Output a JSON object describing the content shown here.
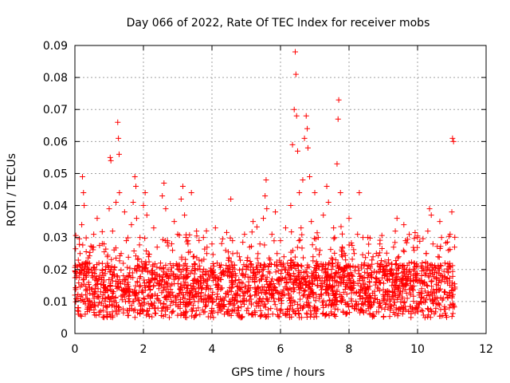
{
  "chart_data": {
    "type": "scatter",
    "title": "Day 066 of 2022, Rate Of TEC Index for receiver mobs",
    "xlabel": "GPS time / hours",
    "ylabel": "ROTI / TECUs",
    "xlim": [
      0,
      12
    ],
    "ylim": [
      0,
      0.09
    ],
    "xticks": [
      0,
      2,
      4,
      6,
      8,
      10,
      12
    ],
    "xtick_labels": [
      "0",
      "2",
      "4",
      "6",
      "8",
      "10",
      "12"
    ],
    "yticks": [
      0,
      0.01,
      0.02,
      0.03,
      0.04,
      0.05,
      0.06,
      0.07,
      0.08,
      0.09
    ],
    "ytick_labels": [
      "0",
      "0.01",
      "0.02",
      "0.03",
      "0.04",
      "0.05",
      "0.06",
      "0.07",
      "0.08",
      "0.09"
    ],
    "grid": true,
    "marker": "+",
    "colors": {
      "series": "#ff0000",
      "axis": "#000000",
      "grid": "#a0a0a0"
    },
    "series": [
      {
        "name": "ROTI",
        "points": [
          [
            0.0,
            0.012
          ],
          [
            0.05,
            0.018
          ],
          [
            0.1,
            0.008
          ],
          [
            0.15,
            0.025
          ],
          [
            0.2,
            0.034
          ],
          [
            0.22,
            0.049
          ],
          [
            0.25,
            0.044
          ],
          [
            0.27,
            0.04
          ],
          [
            0.3,
            0.021
          ],
          [
            0.35,
            0.011
          ],
          [
            0.4,
            0.016
          ],
          [
            0.45,
            0.009
          ],
          [
            0.5,
            0.027
          ],
          [
            0.55,
            0.031
          ],
          [
            0.6,
            0.013
          ],
          [
            0.65,
            0.036
          ],
          [
            0.7,
            0.022
          ],
          [
            0.75,
            0.007
          ],
          [
            0.8,
            0.019
          ],
          [
            0.85,
            0.028
          ],
          [
            0.9,
            0.014
          ],
          [
            0.95,
            0.024
          ],
          [
            1.0,
            0.039
          ],
          [
            1.03,
            0.055
          ],
          [
            1.05,
            0.054
          ],
          [
            1.1,
            0.032
          ],
          [
            1.15,
            0.018
          ],
          [
            1.2,
            0.041
          ],
          [
            1.25,
            0.066
          ],
          [
            1.27,
            0.061
          ],
          [
            1.29,
            0.056
          ],
          [
            1.3,
            0.044
          ],
          [
            1.35,
            0.025
          ],
          [
            1.4,
            0.012
          ],
          [
            1.45,
            0.038
          ],
          [
            1.5,
            0.029
          ],
          [
            1.55,
            0.016
          ],
          [
            1.6,
            0.01
          ],
          [
            1.65,
            0.034
          ],
          [
            1.7,
            0.041
          ],
          [
            1.75,
            0.049
          ],
          [
            1.78,
            0.046
          ],
          [
            1.8,
            0.036
          ],
          [
            1.85,
            0.021
          ],
          [
            1.9,
            0.03
          ],
          [
            1.95,
            0.013
          ],
          [
            2.0,
            0.04
          ],
          [
            2.05,
            0.044
          ],
          [
            2.1,
            0.037
          ],
          [
            2.15,
            0.024
          ],
          [
            2.2,
            0.011
          ],
          [
            2.25,
            0.019
          ],
          [
            2.3,
            0.033
          ],
          [
            2.35,
            0.008
          ],
          [
            2.4,
            0.027
          ],
          [
            2.45,
            0.015
          ],
          [
            2.5,
            0.022
          ],
          [
            2.55,
            0.043
          ],
          [
            2.6,
            0.047
          ],
          [
            2.65,
            0.039
          ],
          [
            2.7,
            0.029
          ],
          [
            2.75,
            0.012
          ],
          [
            2.8,
            0.018
          ],
          [
            2.85,
            0.026
          ],
          [
            2.9,
            0.035
          ],
          [
            2.95,
            0.009
          ],
          [
            3.0,
            0.031
          ],
          [
            3.05,
            0.021
          ],
          [
            3.1,
            0.042
          ],
          [
            3.15,
            0.046
          ],
          [
            3.2,
            0.037
          ],
          [
            3.25,
            0.015
          ],
          [
            3.3,
            0.028
          ],
          [
            3.35,
            0.011
          ],
          [
            3.4,
            0.044
          ],
          [
            3.45,
            0.024
          ],
          [
            3.5,
            0.017
          ],
          [
            3.55,
            0.032
          ],
          [
            3.6,
            0.008
          ],
          [
            3.65,
            0.02
          ],
          [
            3.7,
            0.014
          ],
          [
            3.75,
            0.03
          ],
          [
            3.8,
            0.012
          ],
          [
            3.85,
            0.025
          ],
          [
            3.9,
            0.01
          ],
          [
            3.95,
            0.018
          ],
          [
            4.0,
            0.028
          ],
          [
            4.05,
            0.007
          ],
          [
            4.1,
            0.033
          ],
          [
            4.15,
            0.022
          ],
          [
            4.2,
            0.015
          ],
          [
            4.25,
            0.011
          ],
          [
            4.3,
            0.019
          ],
          [
            4.35,
            0.009
          ],
          [
            4.4,
            0.026
          ],
          [
            4.45,
            0.013
          ],
          [
            4.5,
            0.021
          ],
          [
            4.55,
            0.042
          ],
          [
            4.6,
            0.029
          ],
          [
            4.65,
            0.012
          ],
          [
            4.7,
            0.018
          ],
          [
            4.75,
            0.008
          ],
          [
            4.8,
            0.024
          ],
          [
            4.85,
            0.016
          ],
          [
            4.9,
            0.01
          ],
          [
            4.95,
            0.031
          ],
          [
            5.0,
            0.02
          ],
          [
            5.05,
            0.014
          ],
          [
            5.1,
            0.027
          ],
          [
            5.15,
            0.009
          ],
          [
            5.2,
            0.035
          ],
          [
            5.25,
            0.017
          ],
          [
            5.3,
            0.012
          ],
          [
            5.35,
            0.022
          ],
          [
            5.4,
            0.028
          ],
          [
            5.45,
            0.01
          ],
          [
            5.5,
            0.036
          ],
          [
            5.55,
            0.043
          ],
          [
            5.58,
            0.048
          ],
          [
            5.6,
            0.039
          ],
          [
            5.65,
            0.021
          ],
          [
            5.7,
            0.015
          ],
          [
            5.75,
            0.031
          ],
          [
            5.8,
            0.011
          ],
          [
            5.85,
            0.038
          ],
          [
            5.9,
            0.025
          ],
          [
            5.95,
            0.017
          ],
          [
            6.0,
            0.029
          ],
          [
            6.05,
            0.013
          ],
          [
            6.1,
            0.024
          ],
          [
            6.15,
            0.033
          ],
          [
            6.2,
            0.019
          ],
          [
            6.25,
            0.012
          ],
          [
            6.3,
            0.04
          ],
          [
            6.35,
            0.059
          ],
          [
            6.4,
            0.07
          ],
          [
            6.43,
            0.088
          ],
          [
            6.45,
            0.081
          ],
          [
            6.47,
            0.068
          ],
          [
            6.5,
            0.057
          ],
          [
            6.55,
            0.044
          ],
          [
            6.6,
            0.033
          ],
          [
            6.62,
            0.021
          ],
          [
            6.65,
            0.048
          ],
          [
            6.7,
            0.061
          ],
          [
            6.75,
            0.068
          ],
          [
            6.78,
            0.064
          ],
          [
            6.8,
            0.058
          ],
          [
            6.85,
            0.049
          ],
          [
            6.9,
            0.035
          ],
          [
            6.95,
            0.024
          ],
          [
            7.0,
            0.044
          ],
          [
            7.05,
            0.018
          ],
          [
            7.1,
            0.03
          ],
          [
            7.15,
            0.026
          ],
          [
            7.2,
            0.012
          ],
          [
            7.25,
            0.037
          ],
          [
            7.3,
            0.02
          ],
          [
            7.35,
            0.046
          ],
          [
            7.4,
            0.041
          ],
          [
            7.45,
            0.015
          ],
          [
            7.5,
            0.022
          ],
          [
            7.55,
            0.033
          ],
          [
            7.6,
            0.011
          ],
          [
            7.65,
            0.053
          ],
          [
            7.68,
            0.067
          ],
          [
            7.7,
            0.073
          ],
          [
            7.75,
            0.044
          ],
          [
            7.8,
            0.027
          ],
          [
            7.85,
            0.016
          ],
          [
            7.9,
            0.023
          ],
          [
            7.95,
            0.009
          ],
          [
            8.0,
            0.036
          ],
          [
            8.05,
            0.019
          ],
          [
            8.1,
            0.014
          ],
          [
            8.15,
            0.025
          ],
          [
            8.2,
            0.01
          ],
          [
            8.25,
            0.031
          ],
          [
            8.3,
            0.044
          ],
          [
            8.35,
            0.018
          ],
          [
            8.4,
            0.007
          ],
          [
            8.45,
            0.022
          ],
          [
            8.5,
            0.013
          ],
          [
            8.55,
            0.03
          ],
          [
            8.6,
            0.016
          ],
          [
            8.65,
            0.009
          ],
          [
            8.7,
            0.024
          ],
          [
            8.75,
            0.011
          ],
          [
            8.8,
            0.019
          ],
          [
            8.85,
            0.014
          ],
          [
            8.9,
            0.028
          ],
          [
            8.95,
            0.008
          ],
          [
            9.0,
            0.02
          ],
          [
            9.05,
            0.012
          ],
          [
            9.1,
            0.017
          ],
          [
            9.15,
            0.023
          ],
          [
            9.2,
            0.009
          ],
          [
            9.25,
            0.015
          ],
          [
            9.3,
            0.027
          ],
          [
            9.35,
            0.032
          ],
          [
            9.4,
            0.036
          ],
          [
            9.45,
            0.024
          ],
          [
            9.5,
            0.013
          ],
          [
            9.55,
            0.019
          ],
          [
            9.6,
            0.034
          ],
          [
            9.65,
            0.029
          ],
          [
            9.7,
            0.011
          ],
          [
            9.75,
            0.022
          ],
          [
            9.8,
            0.015
          ],
          [
            9.85,
            0.008
          ],
          [
            9.9,
            0.026
          ],
          [
            9.95,
            0.018
          ],
          [
            10.0,
            0.03
          ],
          [
            10.05,
            0.012
          ],
          [
            10.1,
            0.021
          ],
          [
            10.15,
            0.007
          ],
          [
            10.2,
            0.016
          ],
          [
            10.25,
            0.025
          ],
          [
            10.3,
            0.032
          ],
          [
            10.35,
            0.039
          ],
          [
            10.4,
            0.037
          ],
          [
            10.45,
            0.028
          ],
          [
            10.5,
            0.019
          ],
          [
            10.55,
            0.013
          ],
          [
            10.6,
            0.024
          ],
          [
            10.65,
            0.035
          ],
          [
            10.7,
            0.03
          ],
          [
            10.75,
            0.011
          ],
          [
            10.8,
            0.022
          ],
          [
            10.85,
            0.017
          ],
          [
            10.9,
            0.026
          ],
          [
            10.95,
            0.031
          ],
          [
            11.0,
            0.038
          ],
          [
            11.02,
            0.061
          ],
          [
            11.05,
            0.06
          ],
          [
            11.08,
            0.027
          ]
        ]
      }
    ]
  }
}
